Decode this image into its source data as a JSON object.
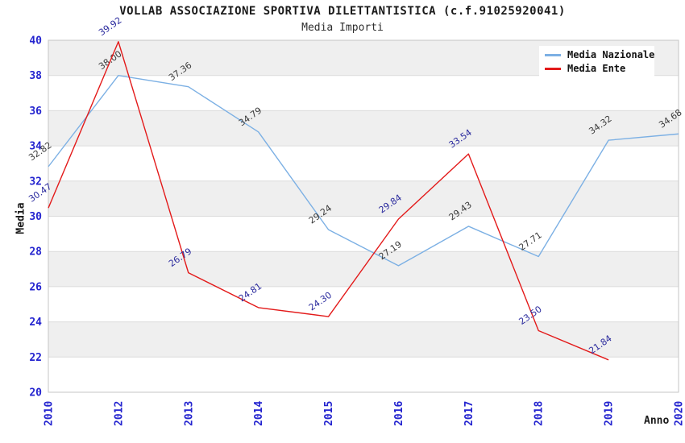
{
  "header": {
    "title": "VOLLAB ASSOCIAZIONE SPORTIVA DILETTANTISTICA (c.f.91025920041)",
    "subtitle": "Media Importi"
  },
  "chart_data": {
    "type": "line",
    "title": "VOLLAB ASSOCIAZIONE SPORTIVA DILETTANTISTICA (c.f.91025920041)",
    "subtitle": "Media Importi",
    "xlabel": "Anno",
    "ylabel": "Media",
    "categories": [
      "2010",
      "2012",
      "2013",
      "2014",
      "2015",
      "2016",
      "2017",
      "2018",
      "2019",
      "2020"
    ],
    "series": [
      {
        "name": "Media Nazionale",
        "color": "#7cb0e4",
        "label_color": "#3b3b3b",
        "values": [
          32.82,
          38.0,
          37.36,
          34.79,
          29.24,
          27.19,
          29.43,
          27.71,
          34.32,
          34.68
        ]
      },
      {
        "name": "Media Ente",
        "color": "#e31a1a",
        "label_color": "#2b2b9e",
        "values": [
          30.47,
          39.92,
          26.79,
          24.81,
          24.3,
          29.84,
          33.54,
          23.5,
          21.84,
          null
        ]
      }
    ],
    "ylim": [
      20,
      40
    ],
    "ytick_step": 2,
    "grid": "horizontal",
    "band_fill_between_alternate_ticks": true,
    "legend_position": "top-right",
    "point_labels_decimals": 2
  },
  "colors": {
    "band": "#efefef",
    "gridline": "#dcdcdc",
    "plot_border": "#c6c6c6",
    "tick_label": "#2424cf",
    "background": "#ffffff"
  }
}
